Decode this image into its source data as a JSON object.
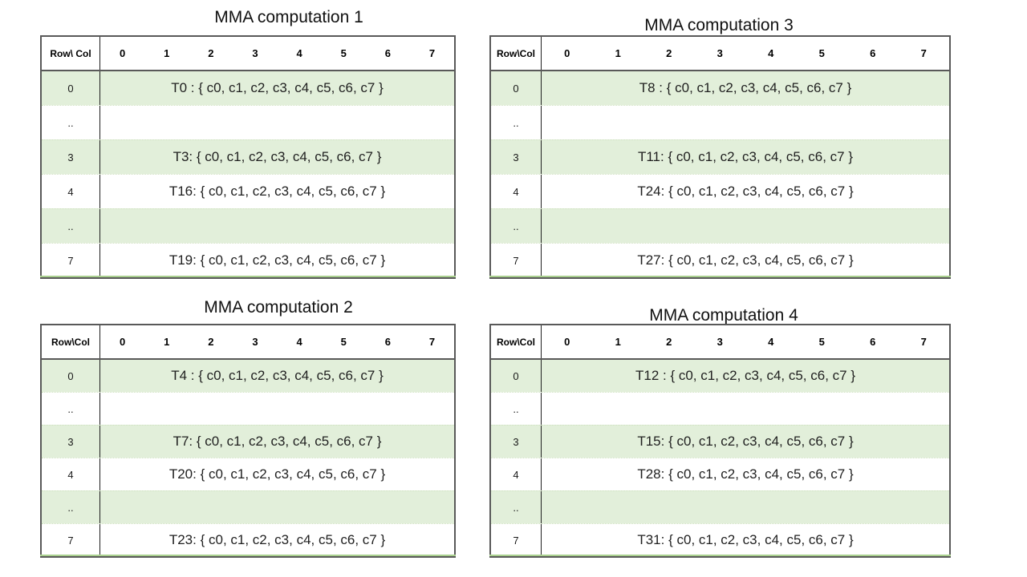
{
  "page": {
    "background": "#ffffff"
  },
  "colors": {
    "row_shaded_green": "#e2efda",
    "outer_border": "#595959",
    "column_divider": "#1f1f1f",
    "bottom_sliver_green": "#a9d08e",
    "text": "#1f1f1f"
  },
  "tables": [
    {
      "title": "MMA computation 1",
      "corner": "Row\\ Col",
      "cols": [
        "0",
        "1",
        "2",
        "3",
        "4",
        "5",
        "6",
        "7"
      ],
      "rows": [
        {
          "label": "0",
          "value": "T0 : { c0, c1, c2, c3, c4, c5, c6, c7 }",
          "shaded": true
        },
        {
          "label": "..",
          "value": "",
          "shaded": false
        },
        {
          "label": "3",
          "value": "T3: { c0, c1, c2, c3, c4, c5, c6, c7 }",
          "shaded": true
        },
        {
          "label": "4",
          "value": "T16: { c0, c1, c2, c3, c4, c5, c6, c7 }",
          "shaded": false
        },
        {
          "label": "..",
          "value": "",
          "shaded": true
        },
        {
          "label": "7",
          "value": "T19: { c0, c1, c2, c3, c4, c5, c6, c7 }",
          "shaded": false
        }
      ]
    },
    {
      "title": "MMA computation 2",
      "corner": "Row\\Col",
      "cols": [
        "0",
        "1",
        "2",
        "3",
        "4",
        "5",
        "6",
        "7"
      ],
      "rows": [
        {
          "label": "0",
          "value": "T4 : { c0, c1, c2, c3, c4, c5, c6, c7 }",
          "shaded": true
        },
        {
          "label": "..",
          "value": "",
          "shaded": false
        },
        {
          "label": "3",
          "value": "T7: { c0, c1, c2, c3, c4, c5, c6, c7 }",
          "shaded": true
        },
        {
          "label": "4",
          "value": "T20: { c0, c1, c2, c3, c4, c5, c6, c7 }",
          "shaded": false
        },
        {
          "label": "..",
          "value": "",
          "shaded": true
        },
        {
          "label": "7",
          "value": "T23: { c0, c1, c2, c3, c4, c5, c6, c7 }",
          "shaded": false
        }
      ]
    },
    {
      "title": "MMA computation 3",
      "corner": "Row\\Col",
      "cols": [
        "0",
        "1",
        "2",
        "3",
        "4",
        "5",
        "6",
        "7"
      ],
      "rows": [
        {
          "label": "0",
          "value": "T8 : { c0, c1, c2, c3, c4, c5, c6, c7 }",
          "shaded": true
        },
        {
          "label": "..",
          "value": "",
          "shaded": false
        },
        {
          "label": "3",
          "value": "T11: { c0, c1, c2, c3, c4, c5, c6, c7 }",
          "shaded": true
        },
        {
          "label": "4",
          "value": "T24: { c0, c1, c2, c3, c4, c5, c6, c7 }",
          "shaded": false
        },
        {
          "label": "..",
          "value": "",
          "shaded": true
        },
        {
          "label": "7",
          "value": "T27: { c0, c1, c2, c3, c4, c5, c6, c7 }",
          "shaded": false
        }
      ]
    },
    {
      "title": "MMA computation 4",
      "corner": "Row\\Col",
      "cols": [
        "0",
        "1",
        "2",
        "3",
        "4",
        "5",
        "6",
        "7"
      ],
      "rows": [
        {
          "label": "0",
          "value": "T12 : { c0, c1, c2, c3, c4, c5, c6, c7 }",
          "shaded": true
        },
        {
          "label": "..",
          "value": "",
          "shaded": false
        },
        {
          "label": "3",
          "value": "T15: { c0, c1, c2, c3, c4, c5, c6, c7 }",
          "shaded": true
        },
        {
          "label": "4",
          "value": "T28: { c0, c1, c2, c3, c4, c5, c6, c7 }",
          "shaded": false
        },
        {
          "label": "..",
          "value": "",
          "shaded": true
        },
        {
          "label": "7",
          "value": "T31: { c0, c1, c2, c3, c4, c5, c6, c7 }",
          "shaded": false
        }
      ]
    }
  ]
}
